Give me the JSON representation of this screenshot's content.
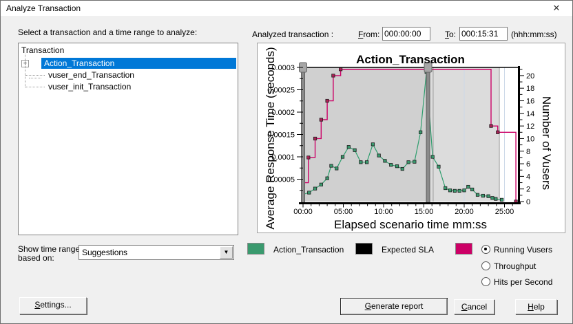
{
  "window": {
    "title": "Analyze Transaction",
    "close_glyph": "✕"
  },
  "instruction": "Select a transaction and a time range to analyze:",
  "tree": {
    "header": "Transaction",
    "items": [
      {
        "label": "Action_Transaction",
        "selected": true,
        "expander": "+"
      },
      {
        "label": "vuser_end_Transaction",
        "selected": false
      },
      {
        "label": "vuser_init_Transaction",
        "selected": false
      }
    ]
  },
  "analyzed": {
    "label": "Analyzed transaction :",
    "from": {
      "u": "F",
      "rest": "rom:"
    },
    "from_value": "000:00:00",
    "to": {
      "u": "T",
      "rest": "o:"
    },
    "to_value": "000:15:31",
    "format": "(hhh:mm:ss)"
  },
  "show_ranges": {
    "line1": "Show time ranges",
    "line2": "based on:",
    "dropdown_value": "Suggestions",
    "dropdown_arrow": "▼"
  },
  "legend": {
    "items": [
      {
        "label": "Action_Transaction",
        "color": "#3a9a6e"
      },
      {
        "label": "Expected SLA",
        "color": "#000000"
      }
    ],
    "overlay": {
      "color": "#cc0066",
      "options": [
        {
          "label": "Running Vusers",
          "selected": true
        },
        {
          "label": "Throughput",
          "selected": false
        },
        {
          "label": "Hits per Second",
          "selected": false
        }
      ]
    }
  },
  "buttons": {
    "settings": {
      "u": "S",
      "rest": "ettings..."
    },
    "generate": {
      "u": "G",
      "rest": "enerate report"
    },
    "cancel": {
      "u": "C",
      "rest": "ancel"
    },
    "help": {
      "u": "H",
      "rest": "elp"
    }
  },
  "chart_data": {
    "type": "line",
    "title": "Action_Transaction",
    "xlabel": "Elapsed scenario time mm:ss",
    "ylabel": "Average Response Time (seconds)",
    "y2label": "Number of Vusers",
    "x_unit": "seconds",
    "xlim": [
      0,
      1600
    ],
    "x_major_ticks": [
      {
        "s": 0,
        "label": "00:00"
      },
      {
        "s": 300,
        "label": "05:00"
      },
      {
        "s": 600,
        "label": "10:00"
      },
      {
        "s": 900,
        "label": "15:00"
      },
      {
        "s": 1200,
        "label": "20:00"
      },
      {
        "s": 1500,
        "label": "25:00"
      }
    ],
    "x_minor_step_s": 60,
    "ylim": [
      0,
      0.0003
    ],
    "y_major_ticks": [
      {
        "v": 5e-05,
        "label": "0.00005"
      },
      {
        "v": 0.0001,
        "label": "0.0001"
      },
      {
        "v": 0.00015,
        "label": "0.00015"
      },
      {
        "v": 0.0002,
        "label": "0.0002"
      },
      {
        "v": 0.00025,
        "label": "0.00025"
      },
      {
        "v": 0.0003,
        "label": "0.0003"
      }
    ],
    "y_minor_step": 2.5e-05,
    "y2lim": [
      0,
      21.3
    ],
    "y2_tick_step": 1,
    "y2_label_step": 2,
    "grid_on": true,
    "grid_vlines_s": [
      1200,
      1500
    ],
    "grid_color": "#ccd9e8",
    "selected_range": {
      "from_s": 0,
      "to_s": 931,
      "from_label": "000:00:00",
      "to_label": "000:15:31",
      "shade": "#d0d0d0"
    },
    "suggested_range": {
      "from_s": 969,
      "to_s": 1462,
      "shade": "#dcdcdc",
      "edge": "#9a9a9a"
    },
    "legend_position": "bottom",
    "series": [
      {
        "name": "Action_Transaction",
        "axis": "left",
        "style": "line",
        "color": "#2f9e6e",
        "marker": "square",
        "marker_color": "#3a9a6e",
        "points": [
          [
            0,
            1.6e-05
          ],
          [
            45,
            2e-05
          ],
          [
            90,
            2.9e-05
          ],
          [
            135,
            3.8e-05
          ],
          [
            180,
            5.2e-05
          ],
          [
            210,
            8e-05
          ],
          [
            250,
            7.4e-05
          ],
          [
            295,
            0.0001
          ],
          [
            340,
            0.000122
          ],
          [
            385,
            0.000115
          ],
          [
            430,
            8.8e-05
          ],
          [
            475,
            8.8e-05
          ],
          [
            520,
            0.000128
          ],
          [
            565,
            0.000103
          ],
          [
            610,
            9.1e-05
          ],
          [
            655,
            8.2e-05
          ],
          [
            700,
            7.9e-05
          ],
          [
            740,
            7.3e-05
          ],
          [
            785,
            8.8e-05
          ],
          [
            830,
            8.9e-05
          ],
          [
            875,
            0.000155
          ],
          [
            919,
            0.00029
          ],
          [
            965,
            0.0001
          ],
          [
            1010,
            7.8e-05
          ],
          [
            1060,
            3e-05
          ],
          [
            1095,
            2.5e-05
          ],
          [
            1130,
            2.4e-05
          ],
          [
            1165,
            2.4e-05
          ],
          [
            1200,
            2.5e-05
          ],
          [
            1230,
            3.3e-05
          ],
          [
            1260,
            2.7e-05
          ],
          [
            1300,
            1.5e-05
          ],
          [
            1340,
            1.3e-05
          ],
          [
            1380,
            1.2e-05
          ],
          [
            1410,
            8e-06
          ],
          [
            1435,
            6e-06
          ],
          [
            1480,
            4e-06
          ]
        ]
      },
      {
        "name": "Expected SLA",
        "axis": "left",
        "style": "line",
        "color": "#000000",
        "marker": "none",
        "points": []
      },
      {
        "name": "Running Vusers",
        "axis": "right",
        "style": "step-after",
        "color": "#cc0066",
        "marker": "square",
        "marker_color": "#aa2255",
        "points": [
          [
            0,
            3
          ],
          [
            40,
            7
          ],
          [
            90,
            10
          ],
          [
            135,
            13
          ],
          [
            180,
            16
          ],
          [
            225,
            20
          ],
          [
            280,
            21
          ],
          [
            1400,
            12
          ],
          [
            1450,
            11
          ],
          [
            1585,
            0
          ]
        ]
      }
    ]
  }
}
